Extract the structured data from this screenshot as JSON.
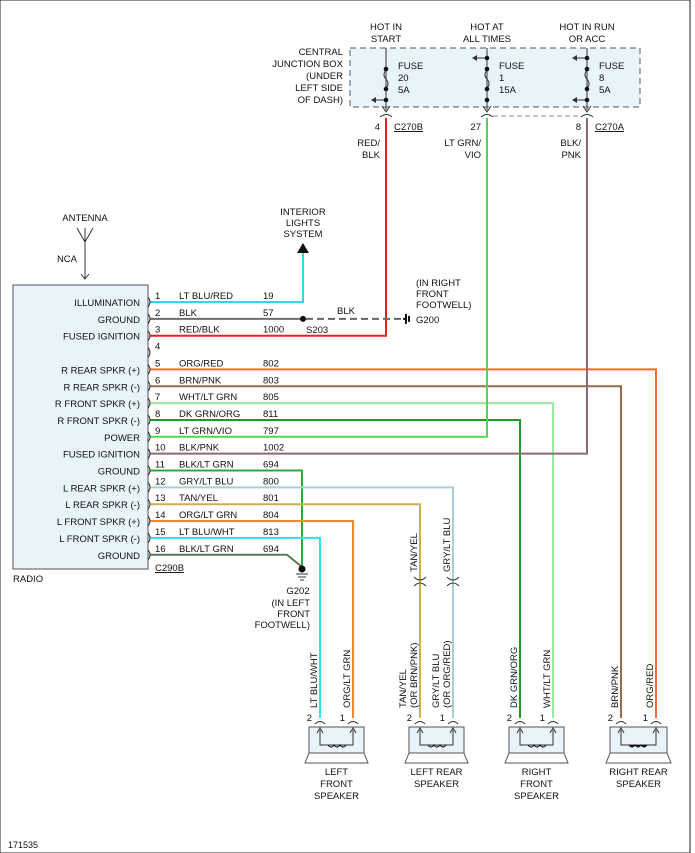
{
  "junction_box": {
    "label": [
      "CENTRAL",
      "JUNCTION BOX",
      "(UNDER",
      "LEFT SIDE",
      "OF DASH)"
    ],
    "fuses": [
      {
        "heading": [
          "HOT IN",
          "START"
        ],
        "fuse": [
          "FUSE",
          "20",
          "5A"
        ],
        "pin": "4",
        "connector": "C270B",
        "wire": [
          "RED/",
          "BLK"
        ]
      },
      {
        "heading": [
          "HOT AT",
          "ALL TIMES"
        ],
        "fuse": [
          "FUSE",
          "1",
          "15A"
        ],
        "pin": "27",
        "connector": "",
        "wire": [
          "LT GRN/",
          "VIO"
        ]
      },
      {
        "heading": [
          "HOT IN RUN",
          "OR ACC"
        ],
        "fuse": [
          "FUSE",
          "8",
          "5A"
        ],
        "pin": "8",
        "connector": "C270A",
        "wire": [
          "BLK/",
          "PNK"
        ]
      }
    ]
  },
  "antenna": {
    "label": "ANTENNA",
    "connector": "NCA"
  },
  "interior_lights": [
    "INTERIOR",
    "LIGHTS",
    "SYSTEM"
  ],
  "g200": {
    "note": [
      "(IN RIGHT",
      "FRONT",
      "FOOTWELL)"
    ],
    "id": "G200",
    "wire": "BLK",
    "splice": "S203"
  },
  "radio": {
    "label": "RADIO",
    "connector": "C290B"
  },
  "pins": [
    {
      "num": "1",
      "function": "ILLUMINATION",
      "color": "LT BLU/RED",
      "circuit": "19",
      "hex": "#33d6f0"
    },
    {
      "num": "2",
      "function": "GROUND",
      "color": "BLK",
      "circuit": "57",
      "hex": "#6e6e6e"
    },
    {
      "num": "3",
      "function": "FUSED IGNITION",
      "color": "RED/BLK",
      "circuit": "1000",
      "hex": "#f01d1d"
    },
    {
      "num": "4",
      "function": "",
      "color": "",
      "circuit": "",
      "hex": ""
    },
    {
      "num": "5",
      "function": "R REAR SPKR (+)",
      "color": "ORG/RED",
      "circuit": "802",
      "hex": "#f7692e"
    },
    {
      "num": "6",
      "function": "R REAR SPKR (-)",
      "color": "BRN/PNK",
      "circuit": "803",
      "hex": "#9b6a4a"
    },
    {
      "num": "7",
      "function": "R FRONT SPKR (+)",
      "color": "WHT/LT GRN",
      "circuit": "805",
      "hex": "#9ce89c"
    },
    {
      "num": "8",
      "function": "R FRONT SPKR (-)",
      "color": "DK GRN/ORG",
      "circuit": "811",
      "hex": "#1e9a2c"
    },
    {
      "num": "9",
      "function": "POWER",
      "color": "LT GRN/VIO",
      "circuit": "797",
      "hex": "#4fd84f"
    },
    {
      "num": "10",
      "function": "FUSED IGNITION",
      "color": "BLK/PNK",
      "circuit": "1002",
      "hex": "#8b6a7a"
    },
    {
      "num": "11",
      "function": "GROUND",
      "color": "BLK/LT GRN",
      "circuit": "694",
      "hex": "#2da83a"
    },
    {
      "num": "12",
      "function": "L REAR SPKR (+)",
      "color": "GRY/LT BLU",
      "circuit": "800",
      "hex": "#a8cfd8"
    },
    {
      "num": "13",
      "function": "L REAR SPKR (-)",
      "color": "TAN/YEL",
      "circuit": "801",
      "hex": "#c9b04a"
    },
    {
      "num": "14",
      "function": "L FRONT SPKR (+)",
      "color": "ORG/LT GRN",
      "circuit": "804",
      "hex": "#f08a30"
    },
    {
      "num": "15",
      "function": "L FRONT SPKR (-)",
      "color": "LT BLU/WHT",
      "circuit": "813",
      "hex": "#33e0f0"
    },
    {
      "num": "16",
      "function": "GROUND",
      "color": "BLK/LT GRN",
      "circuit": "694",
      "hex": "#5a7a5a"
    }
  ],
  "g202": {
    "id": "G202",
    "note": [
      "(IN LEFT",
      "FRONT",
      "FOOTWELL)"
    ]
  },
  "inline_connector_labels": [
    "TAN/YEL",
    "GRY/LT BLU"
  ],
  "speakers": [
    {
      "name": [
        "LEFT",
        "FRONT",
        "SPEAKER"
      ],
      "wire2": [
        "LT BLU/WHT"
      ],
      "wire1": [
        "ORG/LT GRN"
      ]
    },
    {
      "name": [
        "LEFT REAR",
        "SPEAKER"
      ],
      "wire2": [
        "TAN/YEL",
        "(OR BRN/PNK)"
      ],
      "wire1": [
        "GRY/LT BLU",
        "(OR ORG/RED)"
      ]
    },
    {
      "name": [
        "RIGHT",
        "FRONT",
        "SPEAKER"
      ],
      "wire2": [
        "DK GRN/ORG"
      ],
      "wire1": [
        "WHT/LT GRN"
      ]
    },
    {
      "name": [
        "RIGHT REAR",
        "SPEAKER"
      ],
      "wire2": [
        "BRN/PNK"
      ],
      "wire1": [
        "ORG/RED"
      ]
    }
  ],
  "pin_labels": [
    "2",
    "1"
  ],
  "figure_number": "171535"
}
